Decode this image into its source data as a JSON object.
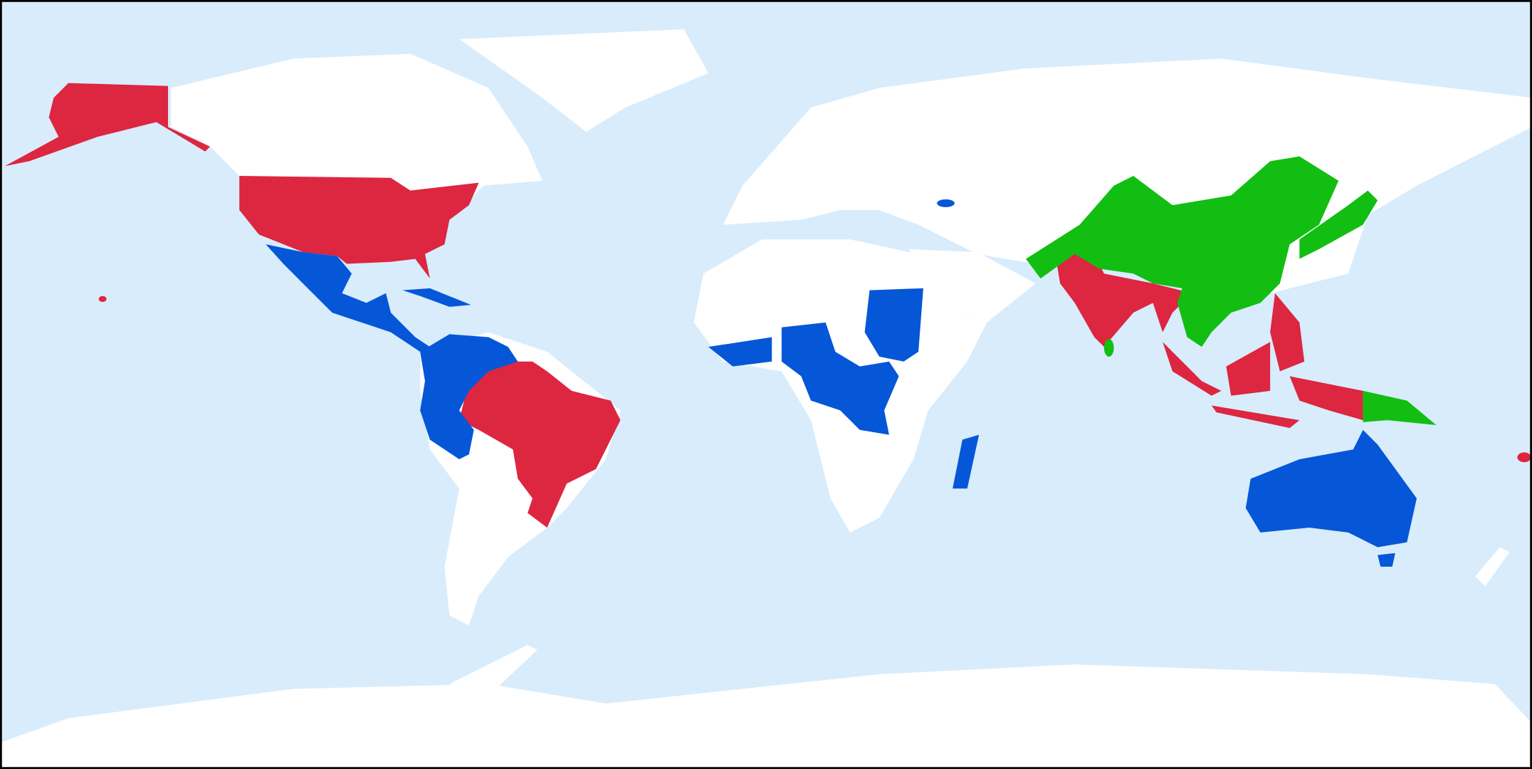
{
  "map": {
    "type": "choropleth",
    "projection": "equirectangular",
    "colors": {
      "ocean": "#d8ecfc",
      "land_default": "#ffffff",
      "group_red": "#dd2640",
      "group_blue": "#0557d8",
      "group_green": "#12be12",
      "border": "#000000"
    }
  }
}
